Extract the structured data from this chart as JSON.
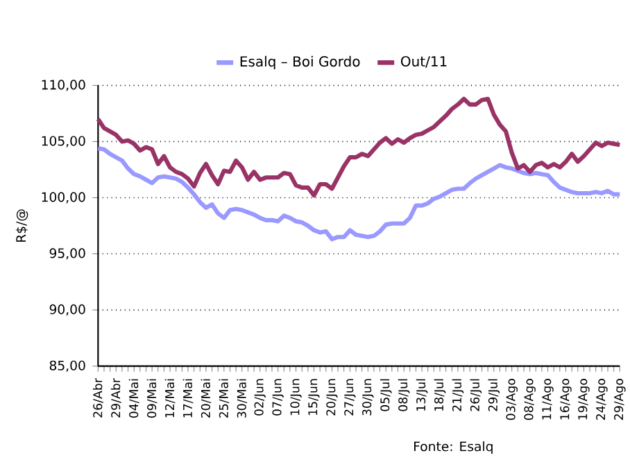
{
  "chart_data": {
    "type": "line",
    "ylabel": "R$/@",
    "categories": [
      "26/Abr",
      null,
      null,
      "29/Abr",
      null,
      null,
      "04/Mai",
      null,
      null,
      "09/Mai",
      null,
      null,
      "12/Mai",
      null,
      null,
      "17/Mai",
      null,
      null,
      "20/Mai",
      null,
      null,
      "25/Mai",
      null,
      null,
      "30/Mai",
      null,
      null,
      "02/Jun",
      null,
      null,
      "07/Jun",
      null,
      null,
      "10/Jun",
      null,
      null,
      "15/Jun",
      null,
      null,
      "20/Jun",
      null,
      null,
      "27/Jun",
      null,
      null,
      "30/Jun",
      null,
      null,
      "05/Jul",
      null,
      null,
      "08/Jul",
      null,
      null,
      "13/Jul",
      null,
      null,
      "18/Jul",
      null,
      null,
      "21/Jul",
      null,
      null,
      "26/Jul",
      null,
      null,
      "29/Jul",
      null,
      null,
      "03/Ago",
      null,
      null,
      "08/Ago",
      null,
      null,
      "11/Ago",
      null,
      null,
      "16/Ago",
      null,
      null,
      "19/Ago",
      null,
      null,
      "24/Ago",
      null,
      null,
      "29/Ago"
    ],
    "series": [
      {
        "name": "Esalq – Boi Gordo",
        "color": "#9999ff",
        "values": [
          104.4,
          104.3,
          103.9,
          103.6,
          103.3,
          102.6,
          102.1,
          101.9,
          101.6,
          101.3,
          101.8,
          101.9,
          101.8,
          101.7,
          101.4,
          100.9,
          100.3,
          99.6,
          99.1,
          99.4,
          98.6,
          98.2,
          98.9,
          99.0,
          98.9,
          98.7,
          98.5,
          98.2,
          98.0,
          98.0,
          97.9,
          98.4,
          98.2,
          97.9,
          97.8,
          97.5,
          97.1,
          96.9,
          97.0,
          96.3,
          96.5,
          96.5,
          97.1,
          96.7,
          96.6,
          96.5,
          96.6,
          97.0,
          97.6,
          97.7,
          97.7,
          97.7,
          98.2,
          99.3,
          99.3,
          99.5,
          99.9,
          100.1,
          100.4,
          100.7,
          100.8,
          100.8,
          101.3,
          101.7,
          102.0,
          102.3,
          102.6,
          102.9,
          102.7,
          102.6,
          102.4,
          102.2,
          102.1,
          102.2,
          102.1,
          102.0,
          101.4,
          100.9,
          100.7,
          100.5,
          100.4,
          100.4,
          100.4,
          100.5,
          100.4,
          100.6,
          100.3,
          100.3
        ]
      },
      {
        "name": "Out/11",
        "color": "#993366",
        "values": [
          107.0,
          106.2,
          105.9,
          105.6,
          105.0,
          105.1,
          104.8,
          104.2,
          104.5,
          104.3,
          103.0,
          103.7,
          102.7,
          102.3,
          102.1,
          101.7,
          101.0,
          102.2,
          103.0,
          102.0,
          101.2,
          102.4,
          102.3,
          103.3,
          102.7,
          101.6,
          102.3,
          101.6,
          101.8,
          101.8,
          101.8,
          102.2,
          102.1,
          101.1,
          100.9,
          100.9,
          100.2,
          101.2,
          101.2,
          100.8,
          101.8,
          102.8,
          103.6,
          103.6,
          103.9,
          103.7,
          104.3,
          104.9,
          105.3,
          104.8,
          105.2,
          104.9,
          105.3,
          105.6,
          105.7,
          106.0,
          106.3,
          106.8,
          107.3,
          107.9,
          108.3,
          108.8,
          108.3,
          108.3,
          108.7,
          108.8,
          107.4,
          106.5,
          105.9,
          104.0,
          102.6,
          102.9,
          102.3,
          102.9,
          103.1,
          102.7,
          103.0,
          102.7,
          103.2,
          103.9,
          103.2,
          103.7,
          104.3,
          104.9,
          104.6,
          104.9,
          104.8,
          104.7
        ]
      }
    ],
    "ylim": [
      85,
      110
    ],
    "yticks": [
      {
        "value": 85,
        "label": "85,00"
      },
      {
        "value": 90,
        "label": "90,00"
      },
      {
        "value": 95,
        "label": "95,00"
      },
      {
        "value": 100,
        "label": "100,00"
      },
      {
        "value": 105,
        "label": "105,00"
      },
      {
        "value": 110,
        "label": "110,00"
      }
    ],
    "grid": "y",
    "legend": "top",
    "marker": "none",
    "line_style": "solid",
    "annotations": [
      "Fonte: Esalq"
    ]
  }
}
